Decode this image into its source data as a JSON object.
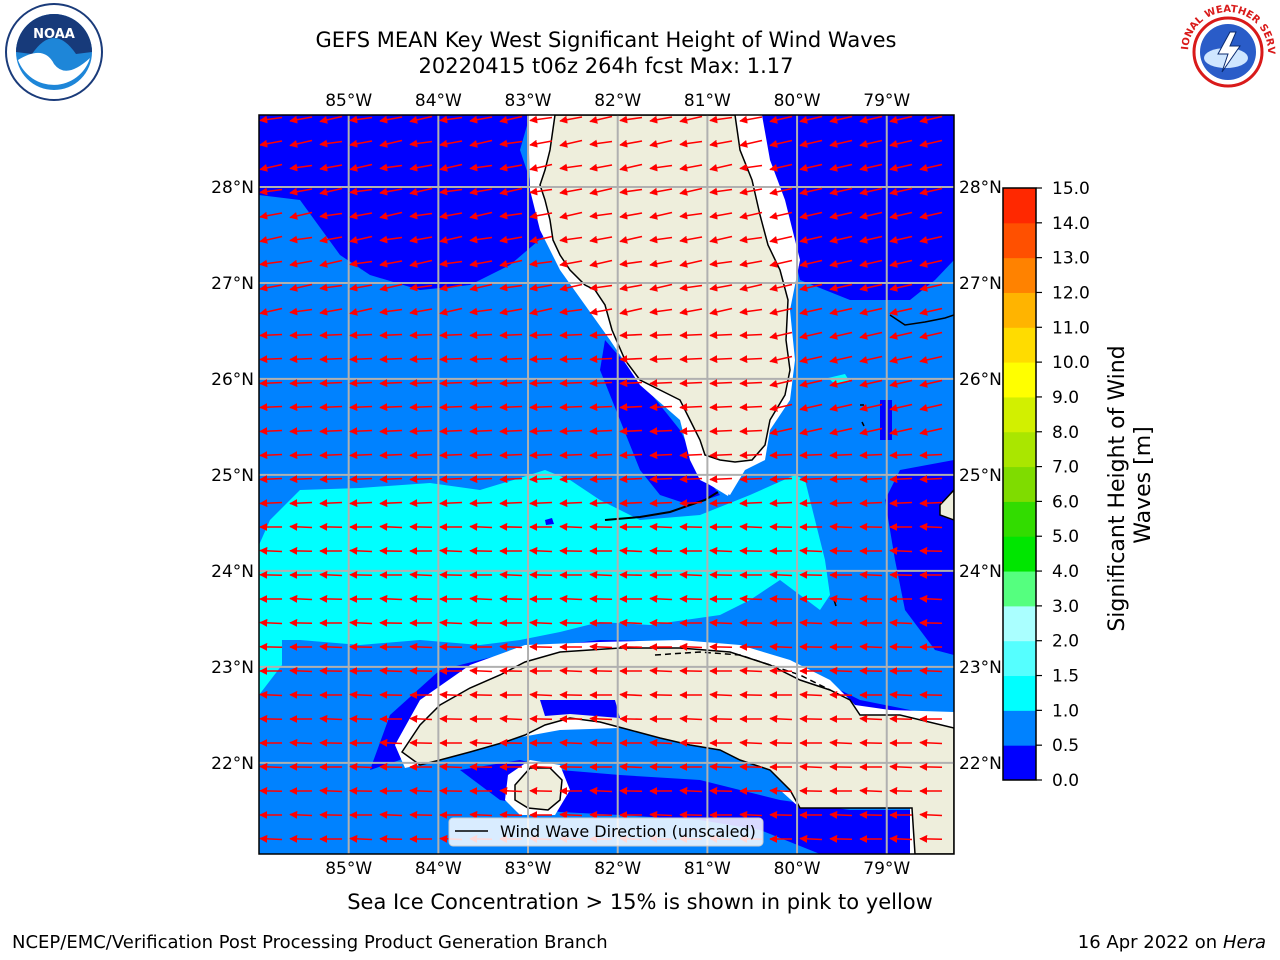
{
  "title": {
    "line1": "GEFS MEAN Key West Significant Height of Wind Waves",
    "line2": "20220415 t06z 264h fcst   Max: 1.17"
  },
  "map": {
    "lon_labels": [
      "85°W",
      "84°W",
      "83°W",
      "82°W",
      "81°W",
      "80°W",
      "79°W"
    ],
    "lat_labels": [
      "28°N",
      "27°N",
      "26°N",
      "25°N",
      "24°N",
      "23°N",
      "22°N"
    ],
    "lon_range": [
      -86.0,
      -78.25
    ],
    "lat_range": [
      21.05,
      28.75
    ],
    "legend_label": "Wind Wave Direction (unscaled)",
    "arrow_color": "#ff0000",
    "land_color": "#eeeedc",
    "wave_colors": {
      "0.0-0.5": "#0000ff",
      "0.5-1.0": "#0082ff",
      "1.0-1.5": "#00ffff"
    }
  },
  "colorbar": {
    "label": "Significant Height of Wind Waves [m]",
    "label_line1": "Significant Height of Wind",
    "label_line2": "Waves [m]",
    "ticks": [
      "0.0",
      "0.5",
      "1.0",
      "1.5",
      "2.0",
      "3.0",
      "4.0",
      "5.0",
      "6.0",
      "7.0",
      "8.0",
      "9.0",
      "10.0",
      "11.0",
      "12.0",
      "13.0",
      "14.0",
      "15.0"
    ],
    "colors": [
      "#0000ff",
      "#0082ff",
      "#00ffff",
      "#55ffff",
      "#aaffff",
      "#55ff7f",
      "#00e600",
      "#32dc00",
      "#7fdc00",
      "#aae600",
      "#d2f000",
      "#ffff00",
      "#ffdc00",
      "#ffb400",
      "#ff8200",
      "#ff5000",
      "#ff2800"
    ]
  },
  "sea_ice_note": "Sea Ice Concentration > 15% is shown in pink to yellow",
  "footer": {
    "left": "NCEP/EMC/Verification Post Processing Product Generation Branch",
    "right_prefix": "16 Apr 2022 on ",
    "right_host": "Hera"
  },
  "logos": {
    "noaa_text": "NOAA",
    "nws_text": "NATIONAL WEATHER SERVICE"
  }
}
